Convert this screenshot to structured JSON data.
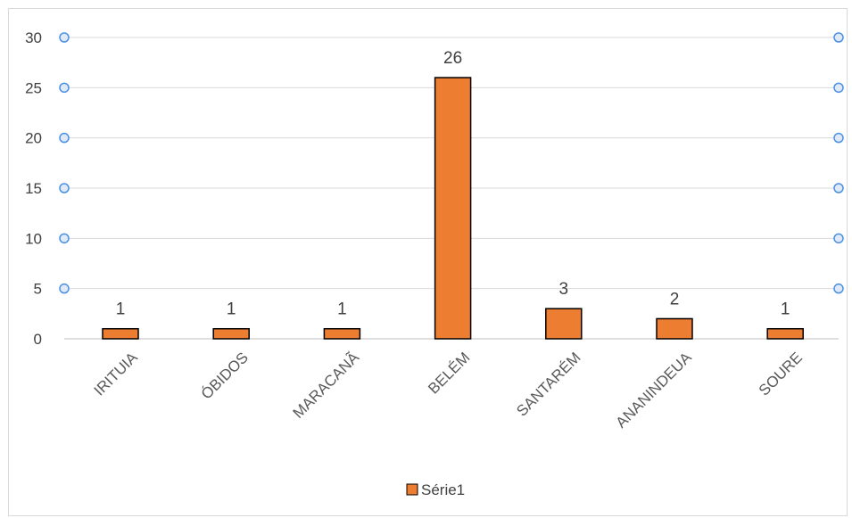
{
  "chart_data": {
    "type": "bar",
    "categories": [
      "IRITUIA",
      "ÓBIDOS",
      "MARACANÃ",
      "BELÉM",
      "SANTARÉM",
      "ANANINDEUA",
      "SOURE"
    ],
    "series": [
      {
        "name": "Série1",
        "values": [
          1,
          1,
          1,
          26,
          3,
          2,
          1
        ]
      }
    ],
    "data_labels": [
      "1",
      "1",
      "1",
      "26",
      "3",
      "2",
      "1"
    ],
    "yticks": [
      "0",
      "5",
      "10",
      "15",
      "20",
      "25",
      "30"
    ],
    "ylim": [
      0,
      30
    ],
    "grid": true,
    "legend_position": "bottom",
    "colors": {
      "bar": "#ED7D31",
      "bar_edge": "#000000",
      "grid": "#d9d9d9",
      "handle": "#4A90E2"
    }
  }
}
